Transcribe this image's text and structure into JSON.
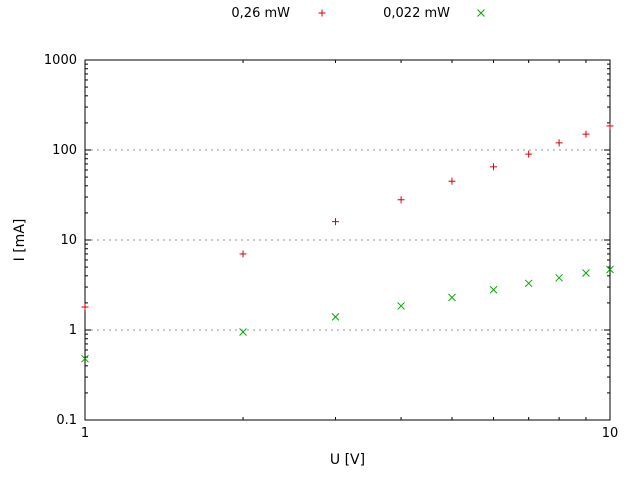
{
  "chart_data": {
    "type": "scatter",
    "title": "",
    "xlabel": "U [V]",
    "ylabel": "I [mA]",
    "x_scale": "log",
    "y_scale": "log",
    "xlim": [
      1,
      10
    ],
    "ylim": [
      0.1,
      1000
    ],
    "x_tick_labels": [
      "1",
      "10"
    ],
    "x_tick_values": [
      1,
      10
    ],
    "y_tick_labels": [
      "0.1",
      "1",
      "10",
      "100",
      "1000"
    ],
    "y_tick_values": [
      0.1,
      1,
      10,
      100,
      1000
    ],
    "grid": "horizontal dotted lines at y = 1, 10, 100",
    "grid_values": [
      1,
      10,
      100
    ],
    "legend_position": "top-center-outside",
    "series": [
      {
        "name": "0,26 mW",
        "marker": "plus",
        "color": "#dd0000",
        "x": [
          1,
          2,
          3,
          4,
          5,
          6,
          7,
          8,
          9,
          10
        ],
        "y": [
          1.8,
          7,
          16,
          28,
          45,
          65,
          90,
          120,
          150,
          185
        ]
      },
      {
        "name": "0,022 mW",
        "marker": "cross",
        "color": "#00aa00",
        "x": [
          1,
          2,
          3,
          4,
          5,
          6,
          7,
          8,
          9,
          10
        ],
        "y": [
          0.48,
          0.95,
          1.4,
          1.85,
          2.3,
          2.8,
          3.3,
          3.8,
          4.3,
          4.7
        ]
      }
    ]
  },
  "colors": {
    "axis": "#000000",
    "grid": "#999999",
    "text": "#000000",
    "background": "#ffffff"
  }
}
